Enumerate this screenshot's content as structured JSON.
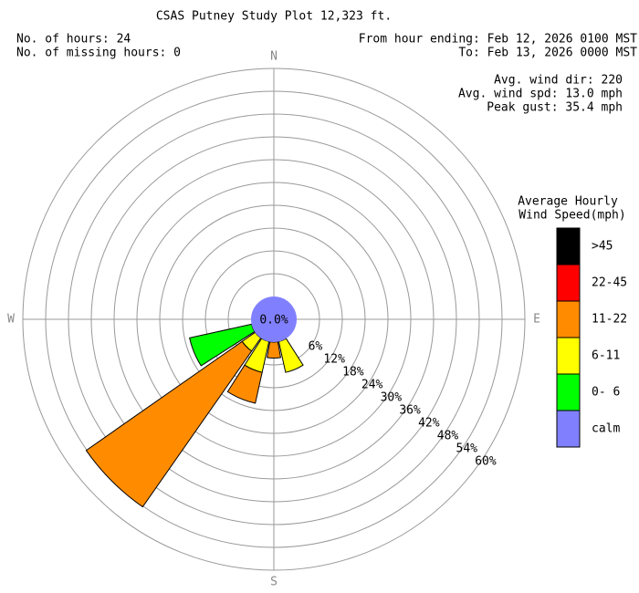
{
  "chart_data": {
    "type": "windrose",
    "title": "CSAS Putney Study Plot 12,323 ft.",
    "info_left": [
      "No. of hours: 24",
      "No. of missing hours: 0"
    ],
    "info_right": [
      "From hour ending: Feb 12, 2026 0100 MST",
      "To: Feb 13, 2026 0000 MST"
    ],
    "stats": [
      "Avg. wind dir: 220",
      "Avg. wind spd: 13.0 mph",
      "Peak gust: 35.4 mph"
    ],
    "legend_title": [
      "Average Hourly",
      "Wind Speed(mph)"
    ],
    "categories": [
      "N",
      null,
      null,
      null,
      "E",
      null,
      null,
      null,
      "S",
      null,
      null,
      null,
      "W",
      null,
      null,
      null
    ],
    "rlim": [
      0,
      60
    ],
    "rticks": [
      {
        "value": 6,
        "label": "6%"
      },
      {
        "value": 12,
        "label": "12%"
      },
      {
        "value": 18,
        "label": "18%"
      },
      {
        "value": 24,
        "label": "24%"
      },
      {
        "value": 30,
        "label": "30%"
      },
      {
        "value": 36,
        "label": "36%"
      },
      {
        "value": 42,
        "label": "42%"
      },
      {
        "value": 48,
        "label": "48%"
      },
      {
        "value": 54,
        "label": "54%"
      },
      {
        "value": 60,
        "label": "60%"
      }
    ],
    "series": [
      {
        "name": ">45",
        "color": "#000000",
        "values": [
          0,
          0,
          0,
          0,
          0,
          0,
          0,
          0,
          0,
          0,
          0,
          0,
          0,
          0,
          0,
          0
        ]
      },
      {
        "name": "22-45",
        "color": "#ff0000",
        "values": [
          0,
          0,
          0,
          0,
          0,
          0,
          0,
          0,
          0,
          0,
          0,
          0,
          0,
          0,
          0,
          0
        ]
      },
      {
        "name": "11-22",
        "color": "#ff8c00",
        "values": [
          0,
          0,
          0,
          0,
          0,
          0,
          0,
          0,
          4.2,
          8.3,
          50.0,
          0,
          0,
          0,
          0,
          0
        ]
      },
      {
        "name": "6-11",
        "color": "#ffff00",
        "values": [
          0,
          0,
          0,
          0,
          0,
          0,
          0,
          8.3,
          0,
          8.3,
          4.2,
          0,
          0,
          0,
          0,
          0
        ]
      },
      {
        "name": "0- 6",
        "color": "#00ff00",
        "values": [
          0,
          0,
          0,
          0,
          0,
          0,
          0,
          0,
          0,
          0,
          0,
          16.7,
          0,
          0,
          0,
          0
        ]
      }
    ],
    "calm": {
      "name": "calm",
      "color": "#8080ff",
      "values": [
        0
      ],
      "value_labels": [
        "0.0%"
      ]
    }
  }
}
